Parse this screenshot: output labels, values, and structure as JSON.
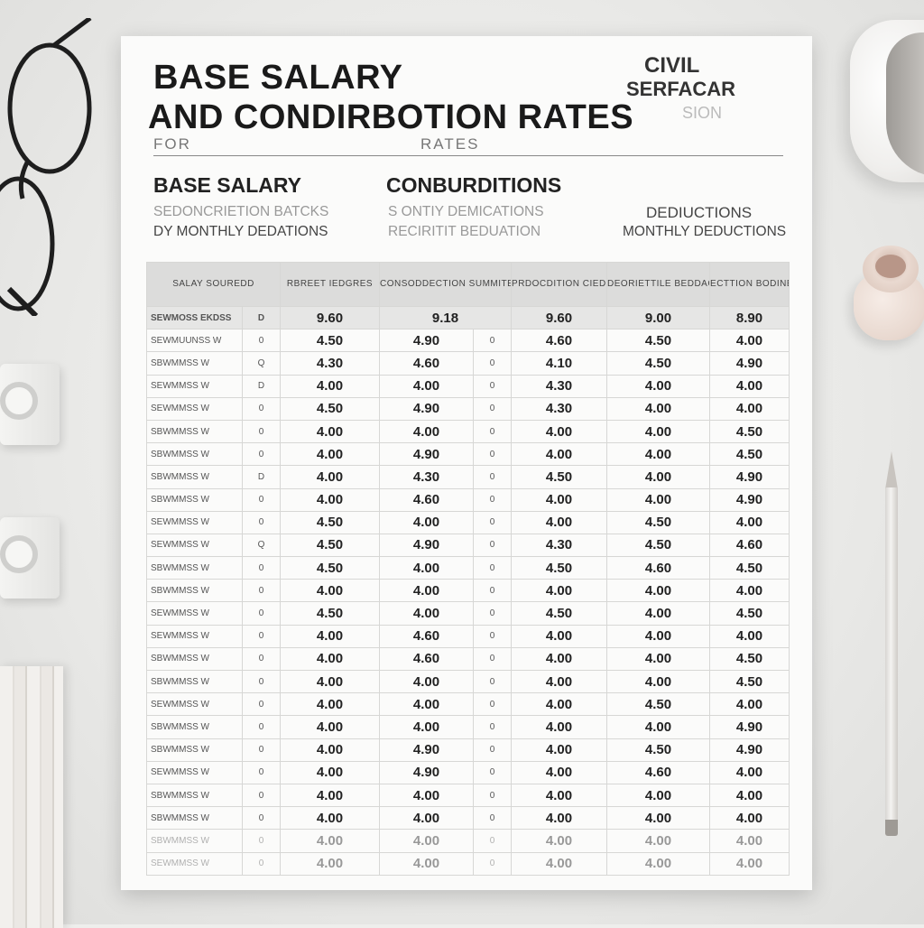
{
  "title": {
    "line1": "BASE SALARY",
    "line2": "AND CONDIRBOTION RATES"
  },
  "brand": {
    "line1": "CIVIL",
    "line2": "SERFACAR",
    "line3": "SION"
  },
  "for_label": "FOR",
  "rates_label": "RATES",
  "sections": {
    "base_salary": "BASE SALARY",
    "conburitions": "CONBURDITIONS",
    "deductions": "DEDIUCTIONS",
    "base_salary_sub1": "SEDONCRIETION BATCKS",
    "base_salary_sub2": "DY MONTHLY DEDATIONS",
    "contributions_sub1": "S ONTIY DEMICATIONS",
    "contributions_sub2": "RECIRITIT BEDUATION",
    "deductions_sub": "MONTHLY DEDUCTIONS"
  },
  "table": {
    "headers": [
      "SALAY SOUREDD",
      "RBREET IEDGRES",
      "CONSODDECTION SUMMITES",
      "PRDOCDITION CIEDORDENS",
      "DEORIETTILE BEDDACEOS",
      "ECTTION BODINES"
    ],
    "first_row": {
      "label": "SEWMOSS EKDSS",
      "mark": "D",
      "values": [
        "9.60",
        "9.18",
        "9.60",
        "9.00",
        "8.90"
      ]
    },
    "rows": [
      {
        "label": "SEWMUUNSS W",
        "marks": [
          "0",
          "0"
        ],
        "values": [
          "4.50",
          "4.90",
          "4.60",
          "4.50",
          "4.00"
        ]
      },
      {
        "label": "SBWMMSS W",
        "marks": [
          "Q",
          "0"
        ],
        "values": [
          "4.30",
          "4.60",
          "4.10",
          "4.50",
          "4.90"
        ]
      },
      {
        "label": "SEWMMSS W",
        "marks": [
          "D",
          "0"
        ],
        "values": [
          "4.00",
          "4.00",
          "4.30",
          "4.00",
          "4.00"
        ]
      },
      {
        "label": "SEWMMSS W",
        "marks": [
          "0",
          "0"
        ],
        "values": [
          "4.50",
          "4.90",
          "4.30",
          "4.00",
          "4.00"
        ]
      },
      {
        "label": "SBWMMSS W",
        "marks": [
          "0",
          "0"
        ],
        "values": [
          "4.00",
          "4.00",
          "4.00",
          "4.00",
          "4.50"
        ]
      },
      {
        "label": "SBWMMSS W",
        "marks": [
          "0",
          "0"
        ],
        "values": [
          "4.00",
          "4.90",
          "4.00",
          "4.00",
          "4.50"
        ]
      },
      {
        "label": "SBWMMSS W",
        "marks": [
          "D",
          "0"
        ],
        "values": [
          "4.00",
          "4.30",
          "4.50",
          "4.00",
          "4.90"
        ]
      },
      {
        "label": "SBWMMSS W",
        "marks": [
          "0",
          "0"
        ],
        "values": [
          "4.00",
          "4.60",
          "4.00",
          "4.00",
          "4.90"
        ]
      },
      {
        "label": "SEWMMSS W",
        "marks": [
          "0",
          "0"
        ],
        "values": [
          "4.50",
          "4.00",
          "4.00",
          "4.50",
          "4.00"
        ]
      },
      {
        "label": "SEWMMSS W",
        "marks": [
          "Q",
          "0"
        ],
        "values": [
          "4.50",
          "4.90",
          "4.30",
          "4.50",
          "4.60"
        ]
      },
      {
        "label": "SBWMMSS W",
        "marks": [
          "0",
          "0"
        ],
        "values": [
          "4.50",
          "4.00",
          "4.50",
          "4.60",
          "4.50"
        ]
      },
      {
        "label": "SBWMMSS W",
        "marks": [
          "0",
          "0"
        ],
        "values": [
          "4.00",
          "4.00",
          "4.00",
          "4.00",
          "4.00"
        ]
      },
      {
        "label": "SEWMMSS W",
        "marks": [
          "0",
          "0"
        ],
        "values": [
          "4.50",
          "4.00",
          "4.50",
          "4.00",
          "4.50"
        ]
      },
      {
        "label": "SEWMMSS W",
        "marks": [
          "0",
          "0"
        ],
        "values": [
          "4.00",
          "4.60",
          "4.00",
          "4.00",
          "4.00"
        ]
      },
      {
        "label": "SBWMMSS W",
        "marks": [
          "0",
          "0"
        ],
        "values": [
          "4.00",
          "4.60",
          "4.00",
          "4.00",
          "4.50"
        ]
      },
      {
        "label": "SBWMMSS W",
        "marks": [
          "0",
          "0"
        ],
        "values": [
          "4.00",
          "4.00",
          "4.00",
          "4.00",
          "4.50"
        ]
      },
      {
        "label": "SEWMMSS W",
        "marks": [
          "0",
          "0"
        ],
        "values": [
          "4.00",
          "4.00",
          "4.00",
          "4.50",
          "4.00"
        ]
      },
      {
        "label": "SBWMMSS W",
        "marks": [
          "0",
          "0"
        ],
        "values": [
          "4.00",
          "4.00",
          "4.00",
          "4.00",
          "4.90"
        ]
      },
      {
        "label": "SBWMMSS W",
        "marks": [
          "0",
          "0"
        ],
        "values": [
          "4.00",
          "4.90",
          "4.00",
          "4.50",
          "4.90"
        ]
      },
      {
        "label": "SEWMMSS W",
        "marks": [
          "0",
          "0"
        ],
        "values": [
          "4.00",
          "4.90",
          "4.00",
          "4.60",
          "4.00"
        ]
      },
      {
        "label": "SBWMMSS W",
        "marks": [
          "0",
          "0"
        ],
        "values": [
          "4.00",
          "4.00",
          "4.00",
          "4.00",
          "4.00"
        ]
      },
      {
        "label": "SBWMMSS W",
        "marks": [
          "0",
          "0"
        ],
        "values": [
          "4.00",
          "4.00",
          "4.00",
          "4.00",
          "4.00"
        ]
      },
      {
        "label": "SBWMMSS W",
        "marks": [
          "0",
          "0"
        ],
        "values": [
          "4.00",
          "4.00",
          "4.00",
          "4.00",
          "4.00"
        ]
      },
      {
        "label": "SEWMMSS W",
        "marks": [
          "0",
          "0"
        ],
        "values": [
          "4.00",
          "4.00",
          "4.00",
          "4.00",
          "4.00"
        ]
      }
    ]
  }
}
